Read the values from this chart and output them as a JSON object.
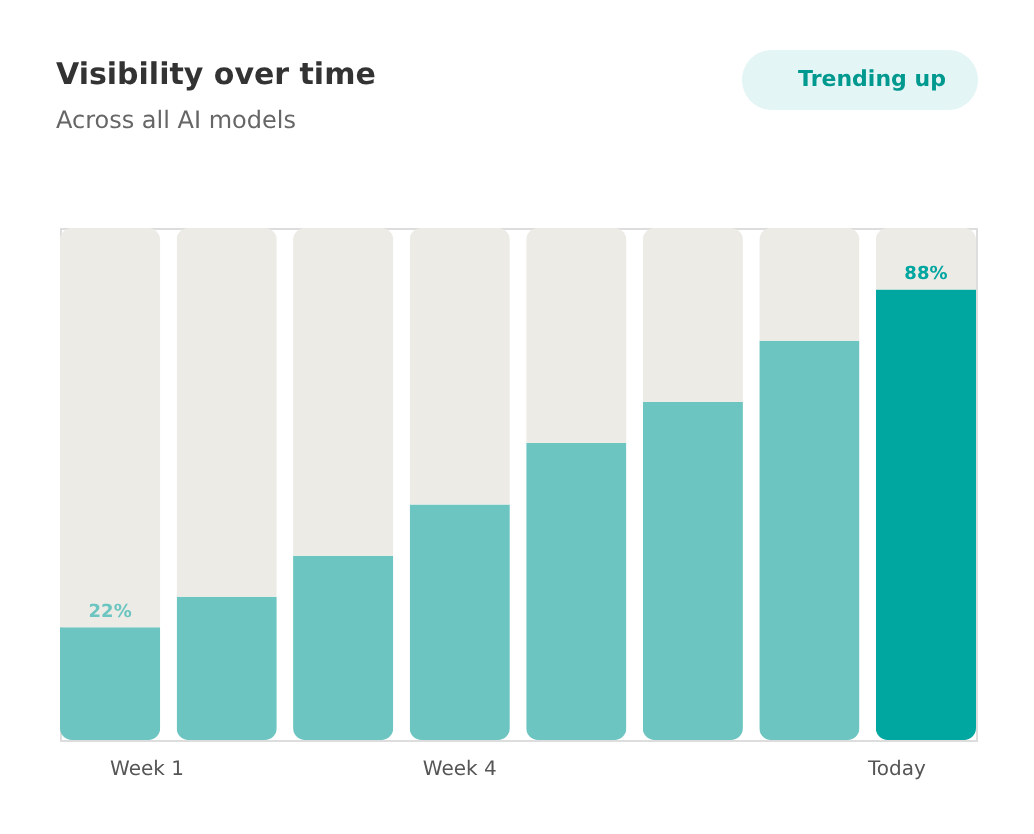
{
  "chart_data": {
    "type": "bar",
    "title": "Visibility over time",
    "subtitle": "Across all AI models",
    "annotations": [
      "Trending up"
    ],
    "categories": [
      "Week 1",
      null,
      null,
      "Week 4",
      null,
      null,
      null,
      "Today"
    ],
    "stacked": true,
    "series": [
      {
        "colors": [
          "#6cc5c1",
          "#6cc5c1",
          "#6cc5c1",
          "#6cc5c1",
          "#6cc5c1",
          "#6cc5c1",
          "#6cc5c1",
          "#00a6a0"
        ],
        "values": [
          22,
          28,
          36,
          46,
          58,
          66,
          78,
          88
        ],
        "value_labels": [
          "22%",
          null,
          null,
          null,
          null,
          null,
          null,
          "88%"
        ]
      },
      {
        "color": "#edebe6",
        "values": [
          78,
          72,
          64,
          54,
          42,
          34,
          22,
          12
        ]
      }
    ],
    "ylim": [
      0,
      100
    ],
    "tick_labels": "x"
  }
}
